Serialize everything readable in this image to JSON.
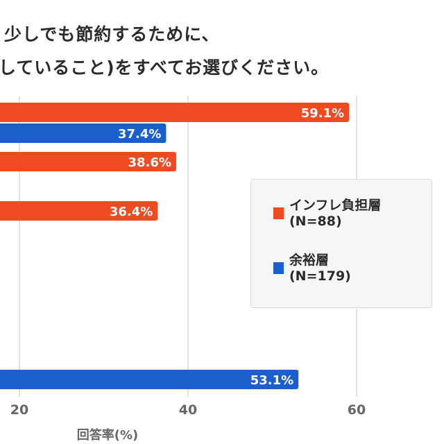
{
  "colors": {
    "inflation": "#ee4b23",
    "comfortable": "#1b5fcc",
    "grid": "#cfcfcf",
    "tick": "#666666"
  },
  "title_lines": [
    "少しでも節約するために、",
    "していること)をすべてお選びください。"
  ],
  "chart_data": {
    "type": "bar",
    "orientation": "horizontal",
    "title": "少しでも節約するために、していること)をすべてお選びください。",
    "xlabel": "回答率(%)",
    "xlim": [
      0,
      65
    ],
    "xticks": [
      20,
      40,
      60
    ],
    "grid": true,
    "legend_placement": "right",
    "categories": [
      "",
      "",
      "",
      "",
      "",
      ""
    ],
    "series": [
      {
        "name": "インフレ負担層",
        "n_label": "(N=88)",
        "color": "#ee4b23",
        "values": [
          59.1,
          38.6,
          36.4,
          null,
          null,
          null
        ],
        "labels": [
          "59.1%",
          "38.6%",
          "36.4%",
          "",
          "",
          ""
        ]
      },
      {
        "name": "余裕層",
        "n_label": "(N=179)",
        "color": "#1b5fcc",
        "values": [
          37.4,
          null,
          null,
          null,
          null,
          53.1
        ],
        "labels": [
          "37.4%",
          "",
          "",
          "",
          "",
          "53.1%"
        ]
      }
    ]
  }
}
